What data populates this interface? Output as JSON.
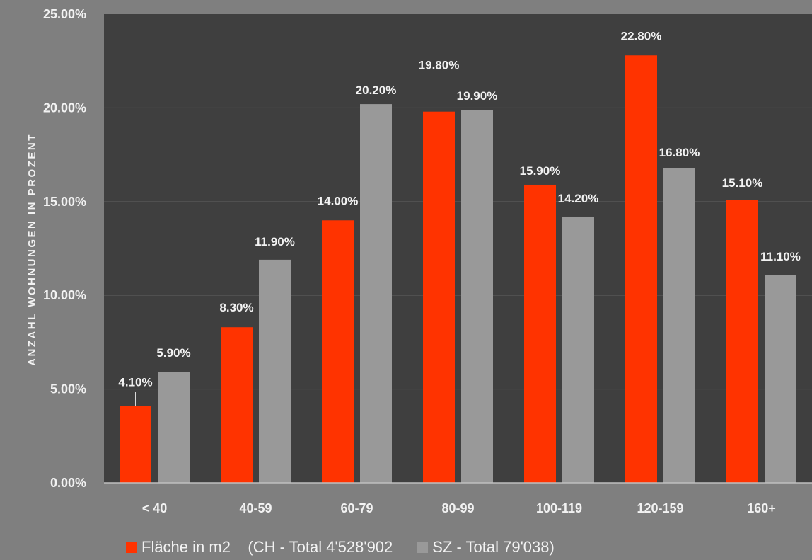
{
  "chart_data": {
    "type": "bar",
    "ylabel": "ANZAHL WOHNUNGEN IN PROZENT",
    "ylim": [
      0,
      25
    ],
    "yticks": [
      "0.00%",
      "5.00%",
      "10.00%",
      "15.00%",
      "20.00%",
      "25.00%"
    ],
    "grid": true,
    "legend_position": "bottom",
    "categories": [
      "< 40",
      "40-59",
      "60-79",
      "80-99",
      "100-119",
      "120-159",
      "160+"
    ],
    "series": [
      {
        "name": "Fläche in m2    (CH - Total 4'528'902",
        "color": "#ff3300",
        "values": [
          4.1,
          8.3,
          14.0,
          19.8,
          15.9,
          22.8,
          15.1
        ],
        "labels": [
          "4.10%",
          "8.30%",
          "14.00%",
          "19.80%",
          "15.90%",
          "22.80%",
          "15.10%"
        ]
      },
      {
        "name": "SZ - Total 79'038)",
        "color": "#999999",
        "values": [
          5.9,
          11.9,
          20.2,
          19.9,
          14.2,
          16.8,
          11.1
        ],
        "labels": [
          "5.90%",
          "11.90%",
          "20.20%",
          "19.90%",
          "14.20%",
          "16.80%",
          "11.10%"
        ]
      }
    ]
  },
  "colors": {
    "background": "#7f7f7f",
    "plot_area": "#3f3f3f",
    "gridline": "#575757",
    "text": "#f2f2f2"
  }
}
